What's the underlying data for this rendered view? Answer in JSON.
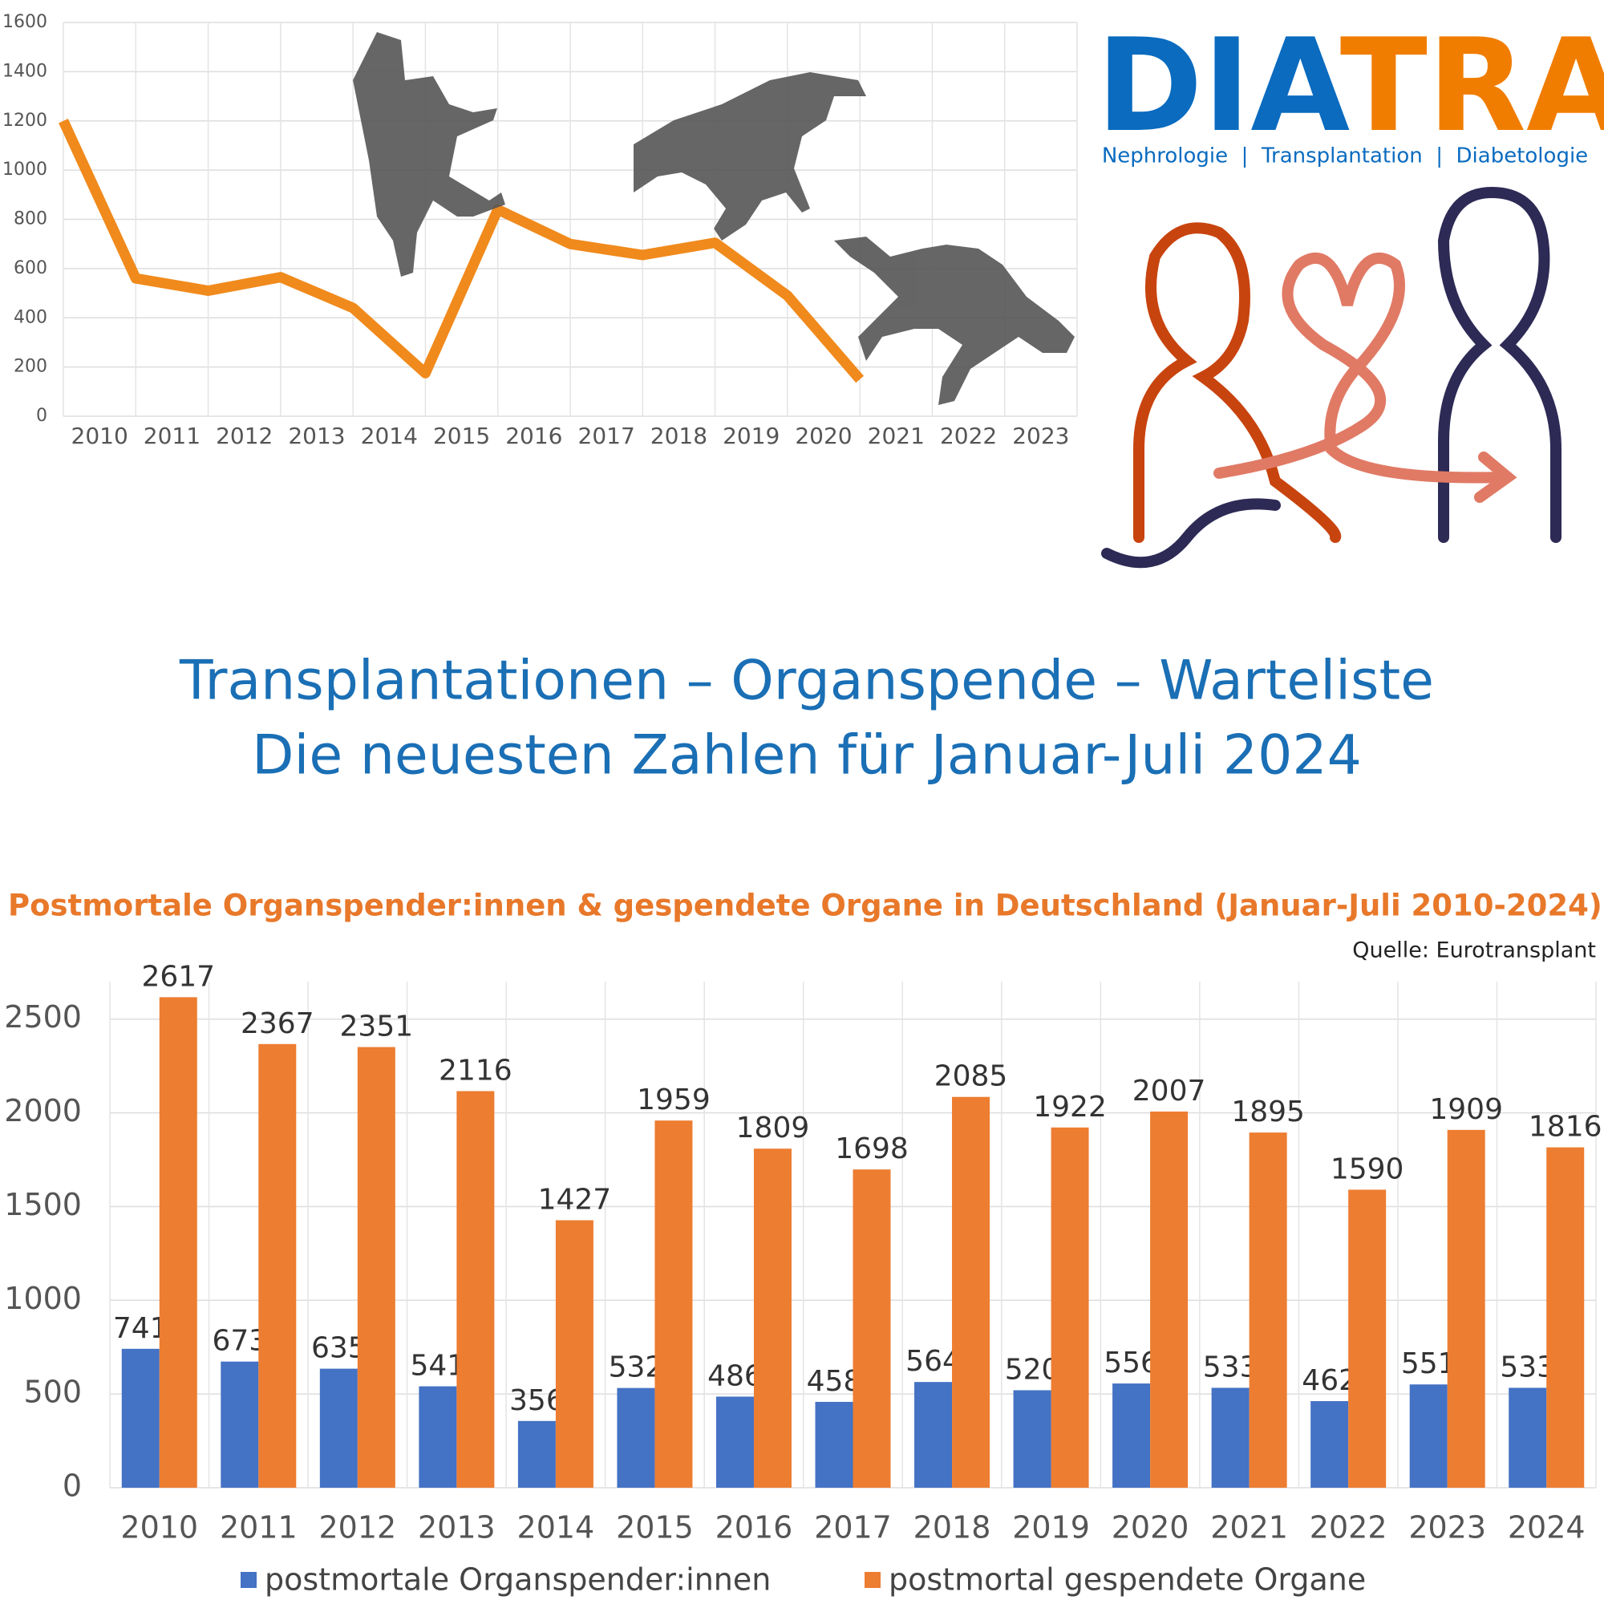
{
  "logo": {
    "part1": "DIA",
    "part2": "TRA",
    "tagline": "Nephrologie  |  Transplantation  |  Diabetologie"
  },
  "headline": [
    "Transplantationen – Organspende – Warteliste",
    "Die neuesten Zahlen für Januar-Juli 2024"
  ],
  "chart_data": [
    {
      "type": "line",
      "color": "#f08a1c",
      "categories": [
        "2010",
        "2011",
        "2012",
        "2013",
        "2014",
        "2015",
        "2016",
        "2017",
        "2018",
        "2019",
        "2020",
        "2021",
        "2022",
        "2023"
      ],
      "values": [
        1200,
        560,
        510,
        565,
        440,
        175,
        840,
        700,
        655,
        705,
        490,
        150,
        null,
        null
      ],
      "ylim": [
        0,
        1600
      ],
      "yticks": [
        0,
        200,
        400,
        600,
        800,
        1000,
        1200,
        1400,
        1600
      ],
      "grid": true
    },
    {
      "type": "bar",
      "title": "Postmortale Organspender:innen & gespendete Organe in Deutschland (Januar-Juli 2010-2024)",
      "source": "Quelle: Eurotransplant",
      "categories": [
        "2010",
        "2011",
        "2012",
        "2013",
        "2014",
        "2015",
        "2016",
        "2017",
        "2018",
        "2019",
        "2020",
        "2021",
        "2022",
        "2023",
        "2024"
      ],
      "series": [
        {
          "name": "postmortale Organspender:innen",
          "color": "#4472c4",
          "values": [
            741,
            673,
            635,
            541,
            356,
            532,
            486,
            458,
            564,
            520,
            556,
            533,
            462,
            551,
            533
          ]
        },
        {
          "name": "postmortal gespendete Organe",
          "color": "#ed7d31",
          "values": [
            2617,
            2367,
            2351,
            2116,
            1427,
            1959,
            1809,
            1698,
            2085,
            1922,
            2007,
            1895,
            1590,
            1909,
            1816
          ]
        }
      ],
      "ylim": [
        0,
        2700
      ],
      "yticks": [
        0,
        500,
        1000,
        1500,
        2000,
        2500
      ],
      "grid": true,
      "legend": "bottom"
    }
  ]
}
